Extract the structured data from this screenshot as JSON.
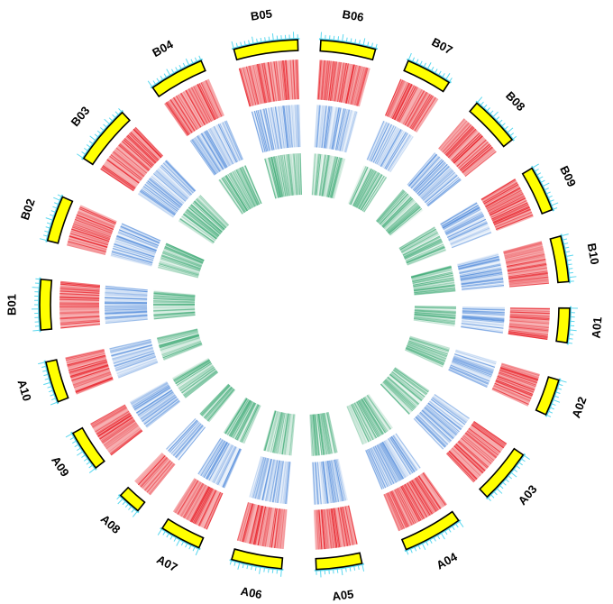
{
  "chromosomes": [
    {
      "id": "A01",
      "label": "A01"
    },
    {
      "id": "A02",
      "label": "A02"
    },
    {
      "id": "A03",
      "label": "A03"
    },
    {
      "id": "A04",
      "label": "A04"
    },
    {
      "id": "A05",
      "label": "A05"
    },
    {
      "id": "A06",
      "label": "A06"
    },
    {
      "id": "A07",
      "label": "A07"
    },
    {
      "id": "A08",
      "label": "A08"
    },
    {
      "id": "A09",
      "label": "A09"
    },
    {
      "id": "A10",
      "label": "A10"
    },
    {
      "id": "B01",
      "label": "B01"
    },
    {
      "id": "B02",
      "label": "B02"
    },
    {
      "id": "B03",
      "label": "B03"
    },
    {
      "id": "B04",
      "label": "B04"
    },
    {
      "id": "B05",
      "label": "B05"
    },
    {
      "id": "B06",
      "label": "B06"
    },
    {
      "id": "B07",
      "label": "B07"
    },
    {
      "id": "B08",
      "label": "B08"
    },
    {
      "id": "B09",
      "label": "B09"
    },
    {
      "id": "B10",
      "label": "B10"
    }
  ],
  "tracks": {
    "ideogram_color": "#ffff00",
    "tick_color": "#5bd8ef",
    "track1_color": "#e8242c",
    "track2_color": "#4a86d9",
    "track3_color": "#2ea36a"
  }
}
